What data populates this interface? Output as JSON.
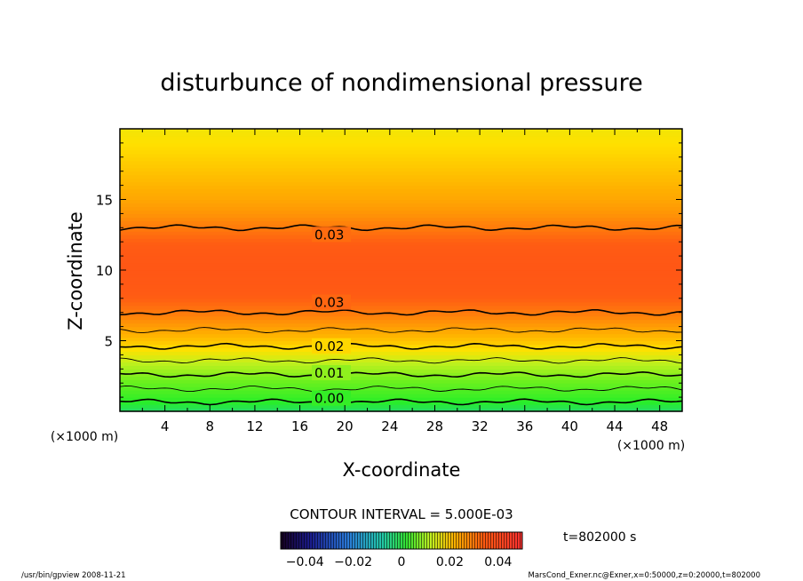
{
  "chart_data": {
    "type": "heatmap",
    "title": "disturbunce of nondimensional pressure",
    "xlabel": "X-coordinate",
    "ylabel": "Z-coordinate",
    "x_unit": "(×1000 m)",
    "y_unit": "(×1000 m)",
    "xlim": [
      0,
      50
    ],
    "ylim": [
      0,
      20
    ],
    "x_ticks": [
      4,
      8,
      12,
      16,
      20,
      24,
      28,
      32,
      36,
      40,
      44,
      48
    ],
    "y_ticks": [
      5,
      10,
      15
    ],
    "contour_interval_text": "CONTOUR INTERVAL = 5.000E-03",
    "time_text": "t=802000 s",
    "colorbar": {
      "range": [
        -0.05,
        0.05
      ],
      "tick_values": [
        -0.04,
        -0.02,
        0,
        0.02,
        0.04
      ],
      "tick_labels": [
        "−0.04",
        "−0.02",
        "0",
        "0.02",
        "0.04"
      ]
    },
    "profile": {
      "z": [
        0,
        1,
        2,
        3,
        4,
        5,
        6,
        7,
        8,
        9,
        10,
        11,
        12,
        13,
        14,
        15,
        16,
        17,
        18,
        19,
        20
      ],
      "value": [
        -0.004,
        0.002,
        0.007,
        0.012,
        0.017,
        0.022,
        0.026,
        0.03,
        0.0335,
        0.0345,
        0.035,
        0.0345,
        0.0335,
        0.03,
        0.027,
        0.025,
        0.0235,
        0.022,
        0.0205,
        0.019,
        0.018
      ]
    },
    "contour_labels": [
      {
        "text": "0.03",
        "x": 17.3,
        "z": 12.5
      },
      {
        "text": "0.03",
        "x": 17.3,
        "z": 7.7
      },
      {
        "text": "0.02",
        "x": 17.3,
        "z": 4.6
      },
      {
        "text": "0.01",
        "x": 17.3,
        "z": 2.7
      },
      {
        "text": "0.00",
        "x": 17.3,
        "z": 0.9
      }
    ]
  },
  "footer": {
    "left": "/usr/bin/gpview   2008-11-21",
    "right": "MarsCond_Exner.nc@Exner,x=0:50000,z=0:20000,t=802000"
  }
}
